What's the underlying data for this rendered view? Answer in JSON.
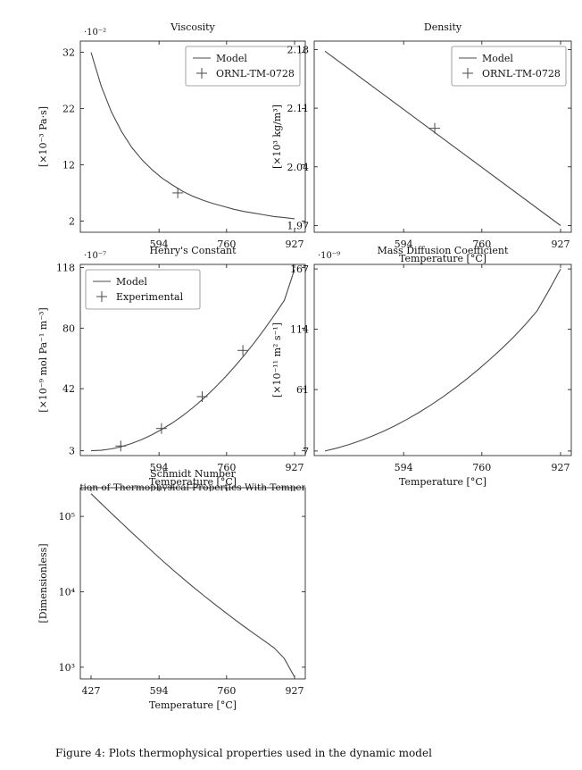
{
  "figure_caption": "Figure 4: Plots thermophysical properties used in the dynamic model",
  "colors": {
    "line": "#4a4a4a",
    "axis": "#111111",
    "background": "#ffffff"
  },
  "chart_data": [
    {
      "type": "line",
      "title": "Viscosity",
      "xlabel": "",
      "ylabel": "[×10⁻³ Pa·s]",
      "multiplier": "·10⁻²",
      "xlim": [
        427,
        927
      ],
      "ylim": [
        0,
        34
      ],
      "x_ticks": [
        "594",
        "760",
        "927"
      ],
      "x_tick_values": [
        594,
        760,
        927
      ],
      "y_ticks": [
        "32",
        "22",
        "12",
        "2"
      ],
      "y_tick_values": [
        32,
        22,
        12,
        2
      ],
      "legend_position": "top-right",
      "series": [
        {
          "name": "Model",
          "kind": "line",
          "x": [
            427,
            452,
            477,
            502,
            527,
            552,
            577,
            602,
            627,
            652,
            677,
            702,
            727,
            752,
            777,
            802,
            827,
            852,
            877,
            902,
            927
          ],
          "y": [
            32.0,
            26.0,
            21.4,
            17.9,
            15.1,
            12.9,
            11.1,
            9.6,
            8.4,
            7.3,
            6.4,
            5.7,
            5.1,
            4.6,
            4.1,
            3.7,
            3.4,
            3.1,
            2.8,
            2.6,
            2.4
          ]
        },
        {
          "name": "ORNL-TM-0728",
          "kind": "marker",
          "x": [
            640
          ],
          "y": [
            7.0
          ]
        }
      ]
    },
    {
      "type": "line",
      "title": "Density",
      "xlabel": "Temperature [°C]",
      "ylabel": "[×10³ kg/m³]",
      "multiplier": "",
      "xlim": [
        427,
        927
      ],
      "ylim": [
        1.962,
        2.19
      ],
      "x_ticks": [
        "594",
        "760",
        "927"
      ],
      "x_tick_values": [
        594,
        760,
        927
      ],
      "y_ticks": [
        "2.18",
        "2.11",
        "2.04",
        "1.97"
      ],
      "y_tick_values": [
        2.18,
        2.11,
        2.04,
        1.97
      ],
      "legend_position": "top-right",
      "series": [
        {
          "name": "Model",
          "kind": "line",
          "x": [
            427,
            927
          ],
          "y": [
            2.178,
            1.97
          ]
        },
        {
          "name": "ORNL-TM-0728",
          "kind": "marker",
          "x": [
            660
          ],
          "y": [
            2.086
          ]
        }
      ]
    },
    {
      "type": "line",
      "title": "Henry's Constant",
      "xlabel": "Temperature [°C]",
      "ylabel": "[×10⁻⁹ mol Pa⁻¹ m⁻³]",
      "multiplier": "·10⁻⁷",
      "xlim": [
        427,
        927
      ],
      "ylim": [
        0,
        120
      ],
      "x_ticks": [
        "594",
        "760",
        "927"
      ],
      "x_tick_values": [
        594,
        760,
        927
      ],
      "y_ticks": [
        "118",
        "80",
        "42",
        "3"
      ],
      "y_tick_values": [
        118,
        80,
        42,
        3
      ],
      "legend_position": "top-left",
      "series": [
        {
          "name": "Model",
          "kind": "line",
          "x": [
            427,
            452,
            477,
            502,
            527,
            552,
            577,
            602,
            627,
            652,
            677,
            702,
            727,
            752,
            777,
            802,
            827,
            852,
            877,
            902,
            927
          ],
          "y": [
            3.0,
            3.3,
            4.2,
            5.6,
            7.6,
            10.1,
            13.1,
            16.6,
            20.5,
            25.0,
            30.0,
            35.5,
            41.5,
            48.0,
            55.0,
            62.5,
            70.5,
            79.0,
            88.0,
            97.5,
            117.0
          ]
        },
        {
          "name": "Experimental",
          "kind": "marker",
          "x": [
            500,
            600,
            700,
            800
          ],
          "y": [
            6,
            17,
            37,
            66
          ]
        }
      ]
    },
    {
      "type": "line",
      "title": "Mass Diffusion Coefficient",
      "xlabel": "Temperature [°C]",
      "ylabel": "[×10⁻¹¹ m² s⁻¹]",
      "multiplier": "·10⁻⁹",
      "xlim": [
        427,
        927
      ],
      "ylim": [
        3,
        171
      ],
      "x_ticks": [
        "594",
        "760",
        "927"
      ],
      "x_tick_values": [
        594,
        760,
        927
      ],
      "y_ticks": [
        "167",
        "114",
        "61",
        "7"
      ],
      "y_tick_values": [
        167,
        114,
        61,
        7
      ],
      "legend_position": "",
      "series": [
        {
          "name": "",
          "kind": "line",
          "x": [
            427,
            452,
            477,
            502,
            527,
            552,
            577,
            602,
            627,
            652,
            677,
            702,
            727,
            752,
            777,
            802,
            827,
            852,
            877,
            902,
            927
          ],
          "y": [
            7.0,
            9.5,
            12.5,
            16.0,
            20.0,
            24.5,
            29.5,
            35.0,
            41.0,
            47.5,
            54.5,
            62.0,
            70.0,
            78.5,
            87.5,
            97.0,
            107.0,
            118.0,
            130.0,
            148.0,
            167.0
          ]
        }
      ]
    },
    {
      "type": "line",
      "title": "Schmidt Number",
      "xlabel": "Temperature [°C]",
      "ylabel": "[Dimensionless]",
      "multiplier": "",
      "overlay_text": "ation of Thermophysical Properties With Tempera",
      "log_y": true,
      "xlim": [
        427,
        927
      ],
      "ylim": [
        700,
        240000
      ],
      "x_ticks": [
        "427",
        "594",
        "760",
        "927"
      ],
      "x_tick_values": [
        427,
        594,
        760,
        927
      ],
      "y_ticks": [
        "10⁵",
        "10⁴",
        "10³"
      ],
      "y_tick_values": [
        100000,
        10000,
        1000
      ],
      "legend_position": "",
      "series": [
        {
          "name": "",
          "kind": "line",
          "x": [
            427,
            452,
            477,
            502,
            527,
            552,
            577,
            602,
            627,
            652,
            677,
            702,
            727,
            752,
            777,
            802,
            827,
            852,
            877,
            902,
            927
          ],
          "y": [
            200000,
            148000,
            110000,
            82000,
            61000,
            46000,
            34500,
            26000,
            19800,
            15200,
            11700,
            9100,
            7100,
            5600,
            4400,
            3500,
            2800,
            2250,
            1800,
            1300,
            740
          ]
        }
      ]
    }
  ]
}
